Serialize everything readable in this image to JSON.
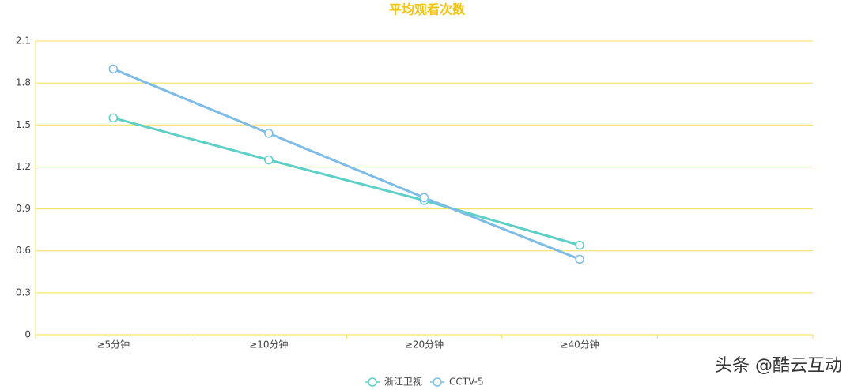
{
  "chart_data": {
    "type": "line",
    "title": "平均观看次数",
    "categories": [
      "≥5分钟",
      "≥10分钟",
      "≥20分钟",
      "≥40分钟",
      null
    ],
    "series": [
      {
        "name": "浙江卫视",
        "color": "#5ccfc6",
        "values": [
          1.55,
          1.25,
          0.96,
          0.64,
          null
        ]
      },
      {
        "name": "CCTV-5",
        "color": "#7dbce6",
        "values": [
          1.9,
          1.44,
          0.98,
          0.54,
          null
        ]
      }
    ],
    "ylim": [
      0,
      2.1
    ],
    "yticks": [
      0,
      0.3,
      0.6,
      0.9,
      1.2,
      1.5,
      1.8,
      2.1
    ],
    "grid": true,
    "grid_color": "#f3df4c",
    "legend": "bottom",
    "watermark": "头条 @酷云互动"
  }
}
